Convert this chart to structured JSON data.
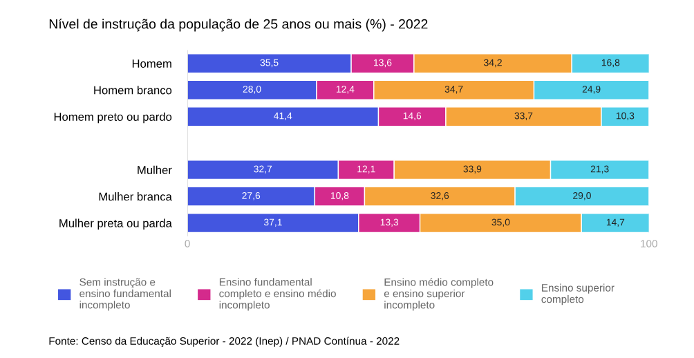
{
  "chart_data": {
    "type": "bar",
    "orientation": "horizontal",
    "stacked": true,
    "title": "Nível de instrução da população de 25 anos ou mais (%) - 2022",
    "categories": [
      "Homem",
      "Homem branco",
      "Homem preto ou pardo",
      null,
      "Mulher",
      "Mulher branca",
      "Mulher preta ou parda"
    ],
    "series": [
      {
        "name": "Sem instrução e\nensino fundamental\nincompleto",
        "color": "#4356e0",
        "values": [
          35.5,
          28.0,
          41.4,
          null,
          32.7,
          27.6,
          37.1
        ],
        "value_labels": [
          "35,5",
          "28,0",
          "41,4",
          null,
          "32,7",
          "27,6",
          "37,1"
        ]
      },
      {
        "name": "Ensino fundamental\ncompleto e ensino médio\nincompleto",
        "color": "#d42a8c",
        "values": [
          13.6,
          12.4,
          14.6,
          null,
          12.1,
          10.8,
          13.3
        ],
        "value_labels": [
          "13,6",
          "12,4",
          "14,6",
          null,
          "12,1",
          "10,8",
          "13,3"
        ]
      },
      {
        "name": "Ensino médio completo\ne ensino superior\nincompleto",
        "color": "#f6a53b",
        "values": [
          34.2,
          34.7,
          33.7,
          null,
          33.9,
          32.6,
          35.0
        ],
        "value_labels": [
          "34,2",
          "34,7",
          "33,7",
          null,
          "33,9",
          "32,6",
          "35,0"
        ]
      },
      {
        "name": "Ensino superior\ncompleto",
        "color": "#52d0ea",
        "values": [
          16.8,
          24.9,
          10.3,
          null,
          21.3,
          29.0,
          14.7
        ],
        "value_labels": [
          "16,8",
          "24,9",
          "10,3",
          null,
          "21,3",
          "29,0",
          "14,7"
        ]
      }
    ],
    "xlim": [
      0,
      100
    ],
    "xticks": [
      0,
      100
    ],
    "grid": false,
    "legend": "bottom",
    "annotations": [
      "Fonte: Censo da Educação Superior - 2022 (Inep) / PNAD Contínua - 2022"
    ]
  }
}
